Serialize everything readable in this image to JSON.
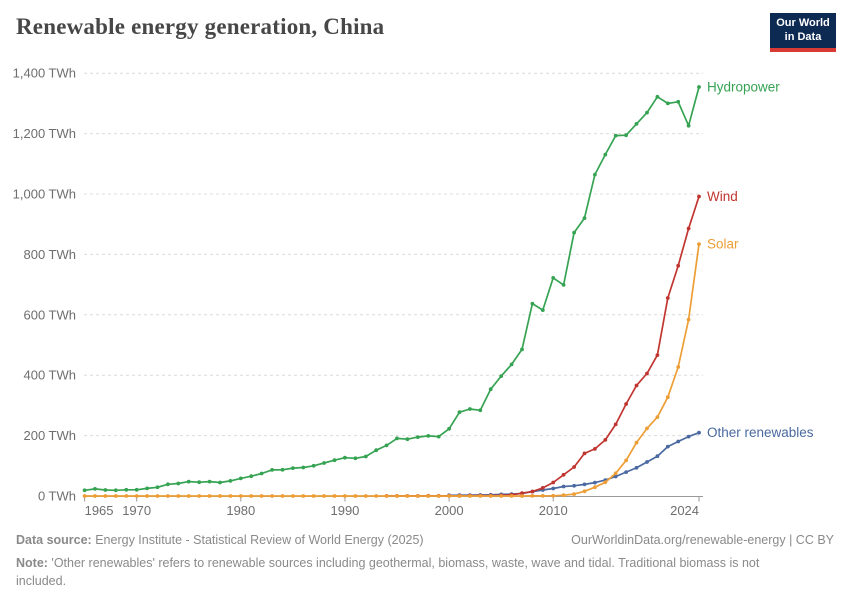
{
  "header": {
    "title": "Renewable energy generation, China",
    "logo": {
      "line1": "Our World",
      "line2": "in Data"
    }
  },
  "chart_data": {
    "type": "line",
    "title": "Renewable energy generation, China",
    "unit": "TWh",
    "grid": "dashed-horizontal",
    "legend_position": "end-of-line-labels",
    "x_axis": {
      "min": 1965,
      "max": 2024,
      "ticks": [
        {
          "year": 1965,
          "label": "1965",
          "align": "start"
        },
        {
          "year": 1970,
          "label": "1970",
          "align": "middle"
        },
        {
          "year": 1980,
          "label": "1980",
          "align": "middle"
        },
        {
          "year": 1990,
          "label": "1990",
          "align": "middle"
        },
        {
          "year": 2000,
          "label": "2000",
          "align": "middle"
        },
        {
          "year": 2010,
          "label": "2010",
          "align": "middle"
        },
        {
          "year": 2024,
          "label": "2024",
          "align": "end"
        }
      ]
    },
    "y_axis": {
      "min": 0,
      "max": 1400,
      "ticks": [
        {
          "value": 0,
          "label": "0 TWh"
        },
        {
          "value": 200,
          "label": "200 TWh"
        },
        {
          "value": 400,
          "label": "400 TWh"
        },
        {
          "value": 600,
          "label": "600 TWh"
        },
        {
          "value": 800,
          "label": "800 TWh"
        },
        {
          "value": 1000,
          "label": "1,000 TWh"
        },
        {
          "value": 1200,
          "label": "1,200 TWh"
        },
        {
          "value": 1400,
          "label": "1,400 TWh"
        }
      ]
    },
    "series": [
      {
        "name": "Other renewables",
        "color": "#4a69a0",
        "start_year": 2000,
        "values": [
          2.4,
          2.6,
          2.9,
          3.2,
          3.9,
          5.3,
          6.3,
          8.2,
          14.7,
          20.0,
          24.8,
          31.5,
          33.7,
          38.3,
          44.4,
          52.7,
          64.7,
          79.0,
          93.3,
          112.6,
          131.9,
          163.6,
          180.4,
          196.6,
          209.7
        ]
      },
      {
        "name": "Wind",
        "color": "#c13530",
        "start_year": 1994,
        "values": [
          0.2,
          0.2,
          0.3,
          0.4,
          0.6,
          0.7,
          0.6,
          0.8,
          1.0,
          1.2,
          1.3,
          2.0,
          3.9,
          9.4,
          14.8,
          26.9,
          44.6,
          70.3,
          95.9,
          141.2,
          156.1,
          185.8,
          237.1,
          304.6,
          365.8,
          405.7,
          466.5,
          655.6,
          762.7,
          885.9,
          991.6
        ]
      },
      {
        "name": "Solar",
        "color": "#ee9e36",
        "start_year": 1965,
        "values": [
          0,
          0,
          0,
          0,
          0,
          0,
          0,
          0,
          0,
          0,
          0,
          0,
          0,
          0,
          0,
          0,
          0,
          0,
          0,
          0,
          0,
          0,
          0,
          0,
          0,
          0,
          0,
          0,
          0,
          0,
          0,
          0,
          0,
          0,
          0,
          0,
          0,
          0,
          0,
          0,
          0,
          0,
          0,
          0.2,
          0.3,
          0.7,
          2.6,
          6.4,
          15.5,
          29.2,
          45.2,
          75.3,
          117.8,
          176.9,
          223.8,
          261.1,
          327.0,
          427.0,
          584.2,
          834.1
        ]
      },
      {
        "name": "Hydropower",
        "color": "#36a353",
        "start_year": 1965,
        "values": [
          18.9,
          23.6,
          19.9,
          19.0,
          20.5,
          20.5,
          25.1,
          28.8,
          38.9,
          41.4,
          47.6,
          45.6,
          47.7,
          44.6,
          50.1,
          58.2,
          65.5,
          74.4,
          86.4,
          86.8,
          92.4,
          94.5,
          100.0,
          109.2,
          118.4,
          126.7,
          124.7,
          130.7,
          151.8,
          167.4,
          190.6,
          188.0,
          194.9,
          198.9,
          196.6,
          222.4,
          277.4,
          288.0,
          283.7,
          353.5,
          397.0,
          435.8,
          485.3,
          637.0,
          615.6,
          722.2,
          698.9,
          872.1,
          920.1,
          1064.3,
          1130.3,
          1193.4,
          1194.8,
          1232.1,
          1269.6,
          1321.7,
          1300.0,
          1305.2,
          1226.2,
          1354.2
        ]
      }
    ]
  },
  "footer": {
    "source_label": "Data source:",
    "source_text": " Energy Institute - Statistical Review of World Energy (2025)",
    "link": "OurWorldinData.org/renewable-energy | CC BY",
    "note_label": "Note:",
    "note_text": " 'Other renewables' refers to renewable sources including geothermal, biomass, waste, wave and tidal. Traditional biomass is not included."
  }
}
